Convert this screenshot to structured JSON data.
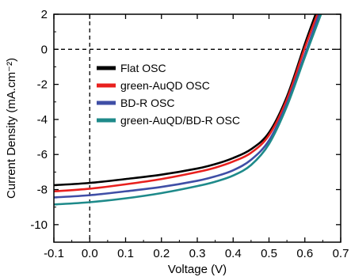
{
  "chart_data": {
    "type": "line",
    "title": "",
    "xlabel": "Voltage (V)",
    "ylabel": "Current Density (mA.cm⁻²)",
    "xlim": [
      -0.1,
      0.7
    ],
    "ylim": [
      -11,
      2
    ],
    "x_ticks": [
      -0.1,
      0.0,
      0.1,
      0.2,
      0.3,
      0.4,
      0.5,
      0.6,
      0.7
    ],
    "x_tick_labels": [
      "-0.1",
      "0.0",
      "0.1",
      "0.2",
      "0.3",
      "0.4",
      "0.5",
      "0.6",
      "0.7"
    ],
    "y_ticks": [
      2,
      0,
      -2,
      -4,
      -6,
      -8,
      -10
    ],
    "y_tick_labels": [
      "2",
      "0",
      "-2",
      "-4",
      "-6",
      "-8",
      "-10"
    ],
    "reference_lines": {
      "x": 0,
      "y": 0,
      "style": "dashed"
    },
    "legend_position": "upper-left",
    "series": [
      {
        "name": "Flat OSC",
        "color": "#000000",
        "x": [
          -0.1,
          0.0,
          0.1,
          0.2,
          0.3,
          0.35,
          0.4,
          0.45,
          0.5,
          0.55,
          0.6,
          0.63
        ],
        "y": [
          -7.75,
          -7.62,
          -7.4,
          -7.15,
          -6.8,
          -6.55,
          -6.2,
          -5.7,
          -4.75,
          -2.7,
          0.3,
          2.0
        ]
      },
      {
        "name": "green-AuQD OSC",
        "color": "#e8201e",
        "x": [
          -0.1,
          0.0,
          0.1,
          0.2,
          0.3,
          0.35,
          0.4,
          0.45,
          0.5,
          0.55,
          0.6,
          0.635
        ],
        "y": [
          -8.1,
          -7.95,
          -7.7,
          -7.4,
          -7.0,
          -6.75,
          -6.4,
          -5.9,
          -4.9,
          -2.85,
          0.1,
          2.0
        ]
      },
      {
        "name": "BD-R OSC",
        "color": "#3f4ea6",
        "x": [
          -0.1,
          0.0,
          0.1,
          0.2,
          0.3,
          0.35,
          0.4,
          0.45,
          0.5,
          0.55,
          0.6,
          0.64
        ],
        "y": [
          -8.45,
          -8.32,
          -8.1,
          -7.85,
          -7.5,
          -7.25,
          -6.9,
          -6.3,
          -5.2,
          -3.1,
          -0.3,
          2.0
        ]
      },
      {
        "name": "green-AuQD/BD-R OSC",
        "color": "#1e8a8a",
        "x": [
          -0.1,
          0.0,
          0.1,
          0.2,
          0.3,
          0.35,
          0.4,
          0.45,
          0.5,
          0.55,
          0.6,
          0.645
        ],
        "y": [
          -8.85,
          -8.72,
          -8.5,
          -8.2,
          -7.8,
          -7.55,
          -7.2,
          -6.6,
          -5.4,
          -3.25,
          -0.45,
          2.0
        ]
      }
    ]
  }
}
